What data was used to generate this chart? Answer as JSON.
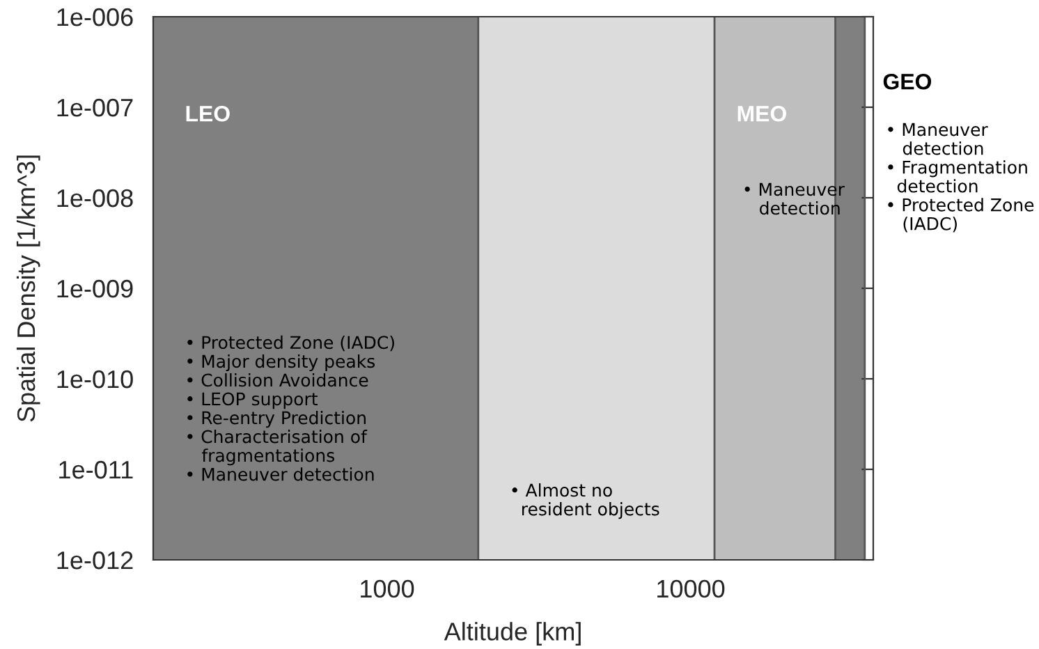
{
  "chart_data": {
    "type": "area",
    "xlabel": "Altitude [km]",
    "ylabel": "Spatial Density [1/km^3]",
    "log": "xy",
    "grid": false,
    "xlim": [
      170,
      40000
    ],
    "ylim": [
      1e-12,
      1e-06
    ],
    "xticks": [
      1000,
      10000
    ],
    "yticks": [
      {
        "value": 1e-12,
        "label": "1e-012"
      },
      {
        "value": 1e-11,
        "label": "1e-011"
      },
      {
        "value": 1e-10,
        "label": "1e-010"
      },
      {
        "value": 1e-09,
        "label": "1e-009"
      },
      {
        "value": 1e-08,
        "label": "1e-008"
      },
      {
        "value": 1e-07,
        "label": "1e-007"
      },
      {
        "value": 1e-06,
        "label": "1e-006"
      }
    ],
    "series": [
      {
        "color": "#808080",
        "x": [
          170,
          2000
        ],
        "values": [
          1e-06,
          1e-06
        ]
      },
      {
        "color": "#dcdcdc",
        "x": [
          2000,
          12000
        ],
        "values": [
          1e-06,
          1e-06
        ]
      },
      {
        "color": "#bebebe",
        "x": [
          12000,
          30000
        ],
        "values": [
          1e-06,
          1e-06
        ]
      },
      {
        "color": "#808080",
        "x": [
          30000,
          37500
        ],
        "values": [
          1e-06,
          1e-06
        ]
      }
    ],
    "annotations": [
      "LEO",
      "• Protected Zone (IADC)\n• Major density peaks\n• Collision Avoidance\n• LEOP support\n• Re-entry Prediction\n• Characterisation of\n   fragmentations\n• Maneuver detection",
      "• Almost no\n  resident objects",
      "MEO",
      "• Maneuver\n   detection",
      "GEO",
      "• Maneuver\n   detection\n• Fragmentation\n  detection\n• Protected Zone\n   (IADC)"
    ]
  }
}
